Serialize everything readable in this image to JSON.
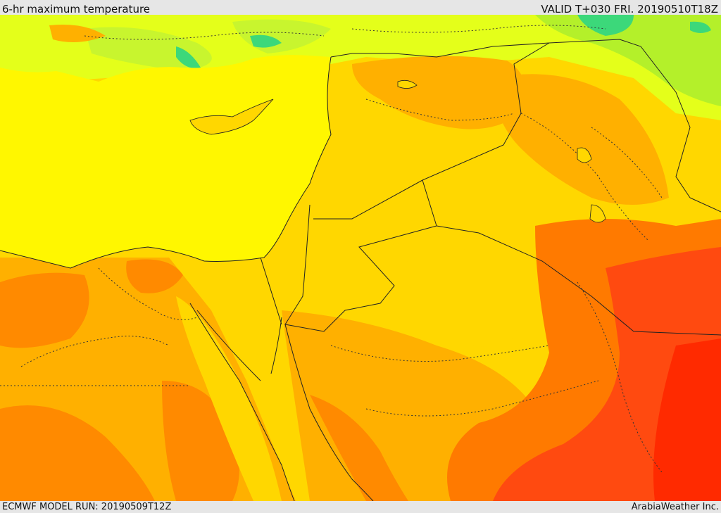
{
  "header": {
    "title": "6-hr maximum temperature",
    "valid": "VALID T+030 FRI. 20190510T18Z"
  },
  "footer": {
    "model_run": "ECMWF MODEL RUN: 20190509T12Z",
    "credit": "ArabiaWeather Inc."
  },
  "palette": {
    "green": "#3cd87a",
    "lime": "#b4f02a",
    "yellow": "#fff700",
    "gold": "#ffd700",
    "orange": "#ffaf00",
    "dark_orange": "#ff7a00",
    "red_orange": "#ff4a10",
    "red": "#ff2a00"
  }
}
